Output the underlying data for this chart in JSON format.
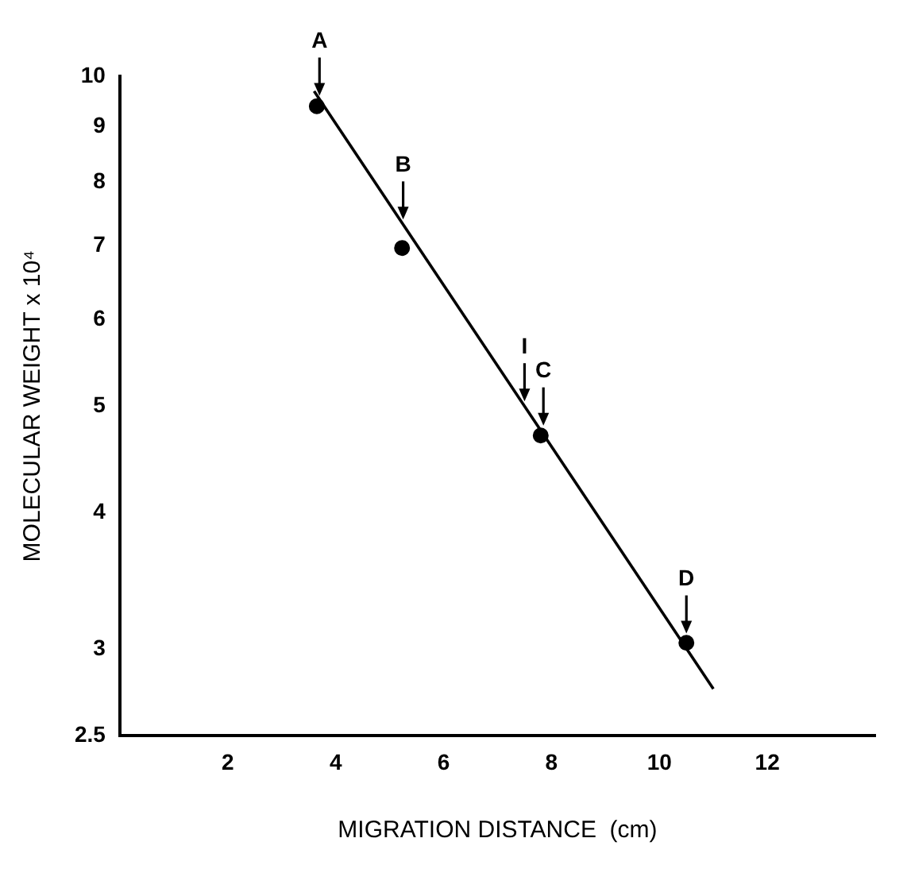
{
  "chart_data": {
    "type": "scatter",
    "xlabel": "MIGRATION DISTANCE  (cm)",
    "ylabel": "MOLECULAR WEIGHT x 10⁴",
    "x": [
      3.65,
      5.23,
      7.8,
      10.5
    ],
    "series": [
      {
        "type": "scatter",
        "color": "#000000",
        "values": [
          9.39,
          6.97,
          4.7,
          3.04
        ]
      },
      {
        "type": "line",
        "color": "#000000",
        "x": [
          3.6,
          11.0
        ],
        "values": [
          9.69,
          2.76
        ],
        "marker": "none"
      }
    ],
    "xlim": [
      0,
      14
    ],
    "xticks": [
      2,
      4,
      6,
      8,
      10,
      12
    ],
    "ylim": [
      2.5,
      10
    ],
    "yticks": [
      2.5,
      3,
      4,
      5,
      6,
      7,
      8,
      9,
      10
    ],
    "log": "y",
    "grid": false,
    "legend": false,
    "marker": "circle",
    "line_style": "solid",
    "annotations": [
      {
        "text": "A",
        "x": 3.7,
        "y": 9.6
      },
      {
        "text": "B",
        "x": 5.25,
        "y": 7.4
      },
      {
        "text": "I",
        "x": 7.5,
        "y": 5.05
      },
      {
        "text": "C",
        "x": 7.85,
        "y": 4.8
      },
      {
        "text": "D",
        "x": 10.5,
        "y": 3.1
      }
    ]
  }
}
